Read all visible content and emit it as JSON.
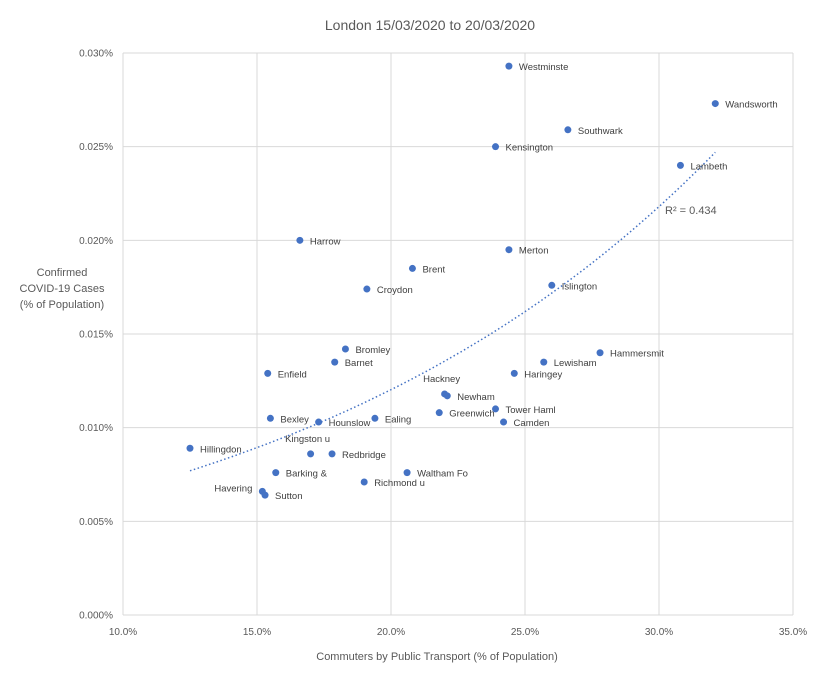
{
  "chart_data": {
    "type": "scatter",
    "title": "London 15/03/2020 to 20/03/2020",
    "xlabel": "Commuters by Public Transport (% of Population)",
    "ylabel": [
      "Confirmed",
      "COVID-19 Cases",
      "(% of Population)"
    ],
    "xlim": [
      10,
      35
    ],
    "ylim": [
      0,
      0.03
    ],
    "x_ticks": [
      10,
      15,
      20,
      25,
      30,
      35
    ],
    "x_tick_labels": [
      "10.0%",
      "15.0%",
      "20.0%",
      "25.0%",
      "30.0%",
      "35.0%"
    ],
    "y_ticks": [
      0,
      0.005,
      0.01,
      0.015,
      0.02,
      0.025,
      0.03
    ],
    "y_tick_labels": [
      "0.000%",
      "0.005%",
      "0.010%",
      "0.015%",
      "0.020%",
      "0.025%",
      "0.030%"
    ],
    "grid": true,
    "marker_color": "#4472C4",
    "trendline": {
      "type": "exponential",
      "r2_label": "R² = 0.434",
      "x_range": [
        12.5,
        32.1
      ],
      "y_start": 0.0077,
      "y_end": 0.0247
    },
    "points": [
      {
        "label": "Westminste",
        "x": 24.4,
        "y": 0.0293
      },
      {
        "label": "Wandsworth",
        "x": 32.1,
        "y": 0.0273
      },
      {
        "label": "Southwark",
        "x": 26.6,
        "y": 0.0259
      },
      {
        "label": "Kensington",
        "x": 23.9,
        "y": 0.025
      },
      {
        "label": "Lambeth",
        "x": 30.8,
        "y": 0.024
      },
      {
        "label": "Harrow",
        "x": 16.6,
        "y": 0.02
      },
      {
        "label": "Merton",
        "x": 24.4,
        "y": 0.0195
      },
      {
        "label": "Brent",
        "x": 20.8,
        "y": 0.0185
      },
      {
        "label": "Croydon",
        "x": 19.1,
        "y": 0.0174
      },
      {
        "label": "Islington",
        "x": 26.0,
        "y": 0.0176
      },
      {
        "label": "Bromley",
        "x": 18.3,
        "y": 0.0142
      },
      {
        "label": "Hammersmit",
        "x": 27.8,
        "y": 0.014
      },
      {
        "label": "Barnet",
        "x": 17.9,
        "y": 0.0135
      },
      {
        "label": "Lewisham",
        "x": 25.7,
        "y": 0.0135
      },
      {
        "label": "Enfield",
        "x": 15.4,
        "y": 0.0129
      },
      {
        "label": "Haringey",
        "x": 24.6,
        "y": 0.0129
      },
      {
        "label": "Hackney",
        "x": 22.0,
        "y": 0.0118
      },
      {
        "label": "Newham",
        "x": 22.1,
        "y": 0.0117
      },
      {
        "label": "Greenwich",
        "x": 21.8,
        "y": 0.0108
      },
      {
        "label": "Tower Haml",
        "x": 23.9,
        "y": 0.011
      },
      {
        "label": "Bexley",
        "x": 15.5,
        "y": 0.0105
      },
      {
        "label": "Hounslow",
        "x": 17.3,
        "y": 0.0103
      },
      {
        "label": "Ealing",
        "x": 19.4,
        "y": 0.0105
      },
      {
        "label": "Camden",
        "x": 24.2,
        "y": 0.0103
      },
      {
        "label": "Hillingdon",
        "x": 12.5,
        "y": 0.0089
      },
      {
        "label": "Kingston u",
        "x": 17.0,
        "y": 0.0086
      },
      {
        "label": "Redbridge",
        "x": 17.8,
        "y": 0.0086
      },
      {
        "label": "Barking &",
        "x": 15.7,
        "y": 0.0076
      },
      {
        "label": "Waltham Fo",
        "x": 20.6,
        "y": 0.0076
      },
      {
        "label": "Richmond u",
        "x": 19.0,
        "y": 0.0071
      },
      {
        "label": "Havering",
        "x": 15.2,
        "y": 0.0066
      },
      {
        "label": "Sutton",
        "x": 15.3,
        "y": 0.0064
      }
    ]
  }
}
